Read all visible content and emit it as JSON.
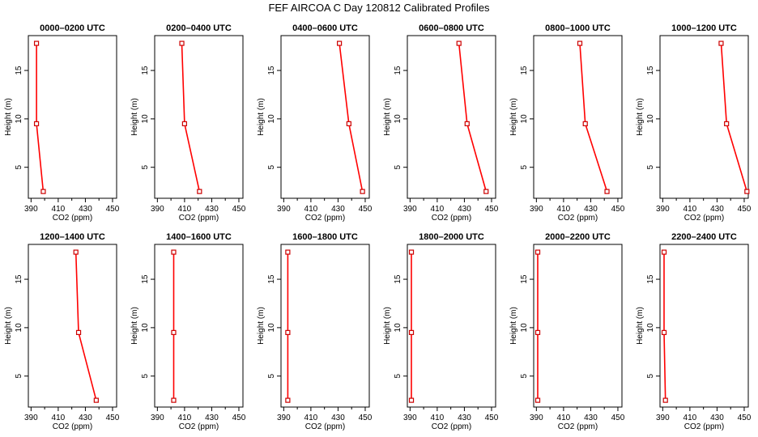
{
  "figure": {
    "title": "FEF AIRCOA C  Day 120812  Calibrated Profiles"
  },
  "chart_data": {
    "type": "line",
    "layout": "2 rows x 6 columns of small-multiple profile plots",
    "xlabel": "CO2 (ppm)",
    "ylabel": "Height (m)",
    "xlim": [
      388,
      453
    ],
    "ylim": [
      1.8,
      18.6
    ],
    "xticks": [
      390,
      410,
      430,
      450
    ],
    "yticks": [
      5,
      10,
      15
    ],
    "grid": false,
    "line_color": "#ff0000",
    "marker_color": "#cc0000",
    "marker": "open square",
    "heights": [
      2.5,
      9.5,
      17.8
    ],
    "panels": [
      {
        "title": "0000–0200 UTC",
        "co2": [
          399.0,
          394.0,
          394.0
        ]
      },
      {
        "title": "0200–0400 UTC",
        "co2": [
          421.0,
          410.0,
          408.0
        ]
      },
      {
        "title": "0400–0600 UTC",
        "co2": [
          448.0,
          438.0,
          431.0
        ]
      },
      {
        "title": "0600–0800 UTC",
        "co2": [
          446.0,
          432.0,
          426.0
        ]
      },
      {
        "title": "0800–1000 UTC",
        "co2": [
          442.0,
          426.0,
          422.0
        ]
      },
      {
        "title": "1000–1200 UTC",
        "co2": [
          452.0,
          437.0,
          433.0
        ]
      },
      {
        "title": "1200–1400 UTC",
        "co2": [
          438.0,
          425.0,
          423.0
        ]
      },
      {
        "title": "1400–1600 UTC",
        "co2": [
          402.0,
          402.0,
          402.0
        ]
      },
      {
        "title": "1600–1800 UTC",
        "co2": [
          393.0,
          393.0,
          393.0
        ]
      },
      {
        "title": "1800–2000 UTC",
        "co2": [
          391.0,
          391.0,
          391.0
        ]
      },
      {
        "title": "2000–2200 UTC",
        "co2": [
          391.0,
          391.0,
          391.0
        ]
      },
      {
        "title": "2200–2400 UTC",
        "co2": [
          392.0,
          391.0,
          391.0
        ]
      }
    ]
  }
}
